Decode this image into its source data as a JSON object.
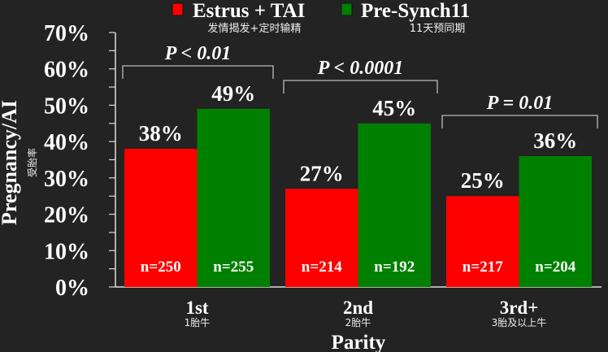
{
  "chart_data": {
    "type": "bar",
    "categories": [
      "1st",
      "2nd",
      "3rd+"
    ],
    "category_sublabels": [
      "1胎牛",
      "2胎牛",
      "3胎及以上牛"
    ],
    "series": [
      {
        "name": "Estrus + TAI",
        "sublabel": "发情揭发+定时输精",
        "color": "#ff0000",
        "values": [
          38,
          27,
          25
        ],
        "labels": [
          "38%",
          "27%",
          "25%"
        ],
        "n": [
          "n=250",
          "n=214",
          "n=217"
        ]
      },
      {
        "name": "Pre-Synch11",
        "sublabel": "11天预同期",
        "color": "#008000",
        "values": [
          49,
          45,
          36
        ],
        "labels": [
          "49%",
          "45%",
          "36%"
        ],
        "n": [
          "n=255",
          "n=192",
          "n=204"
        ]
      }
    ],
    "significance": [
      "P < 0.01",
      "P < 0.0001",
      "P = 0.01"
    ],
    "xlabel": "Parity",
    "ylabel": "Pregnancy/AI",
    "ylabel_sub": "受胎率",
    "ylim": [
      0,
      70
    ],
    "yticks": [
      "0%",
      "10%",
      "20%",
      "30%",
      "40%",
      "50%",
      "60%",
      "70%"
    ],
    "legend_position": "top",
    "grid": false
  }
}
